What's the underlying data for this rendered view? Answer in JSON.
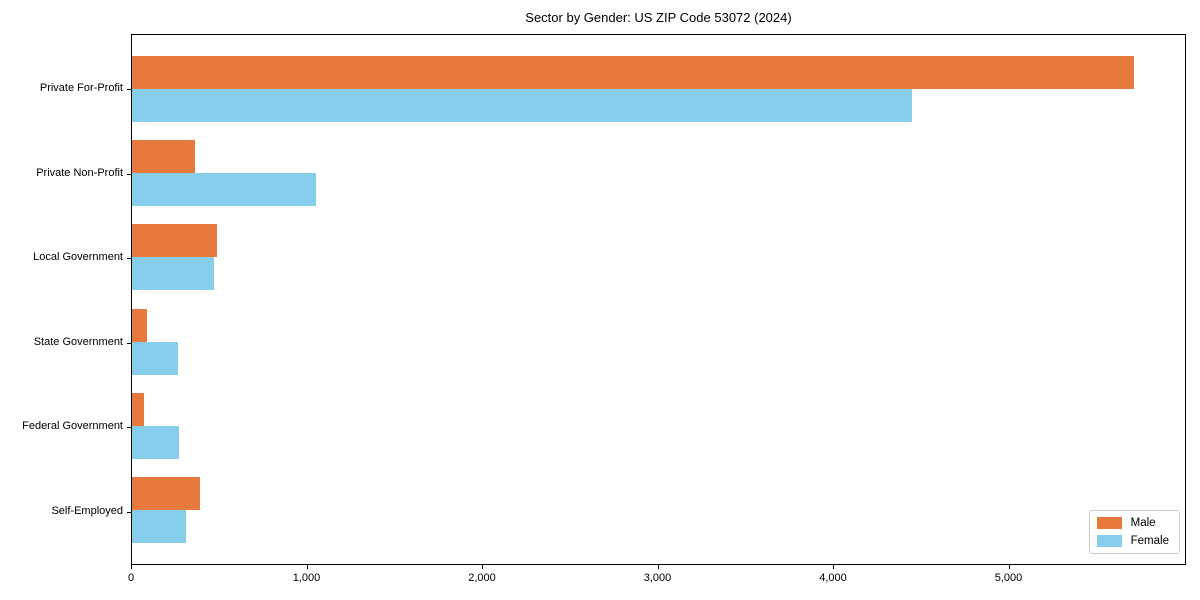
{
  "title": "Sector by Gender: US ZIP Code 53072 (2024)",
  "colors": {
    "male": "#e8793d",
    "female": "#87ceeb",
    "plot_border": "#000000",
    "legend_border": "#cccccc",
    "background": "#ffffff"
  },
  "legend": {
    "position": "lower right",
    "entries": [
      "Male",
      "Female"
    ]
  },
  "chart_data": {
    "type": "bar",
    "orientation": "horizontal",
    "title": "Sector by Gender: US ZIP Code 53072 (2024)",
    "xlabel": "",
    "ylabel": "",
    "grid": false,
    "categories": [
      "Private For-Profit",
      "Private Non-Profit",
      "Local Government",
      "State Government",
      "Federal Government",
      "Self-Employed"
    ],
    "series": [
      {
        "name": "Male",
        "color": "#e8793d",
        "values": [
          5710,
          360,
          485,
          85,
          70,
          390
        ]
      },
      {
        "name": "Female",
        "color": "#87ceeb",
        "values": [
          4445,
          1050,
          465,
          260,
          265,
          310
        ]
      }
    ],
    "xlim": [
      0,
      6000
    ],
    "xticks": [
      0,
      1000,
      2000,
      3000,
      4000,
      5000
    ],
    "xtick_labels": [
      "0",
      "1,000",
      "2,000",
      "3,000",
      "4,000",
      "5,000"
    ],
    "legend_position": "lower right"
  }
}
